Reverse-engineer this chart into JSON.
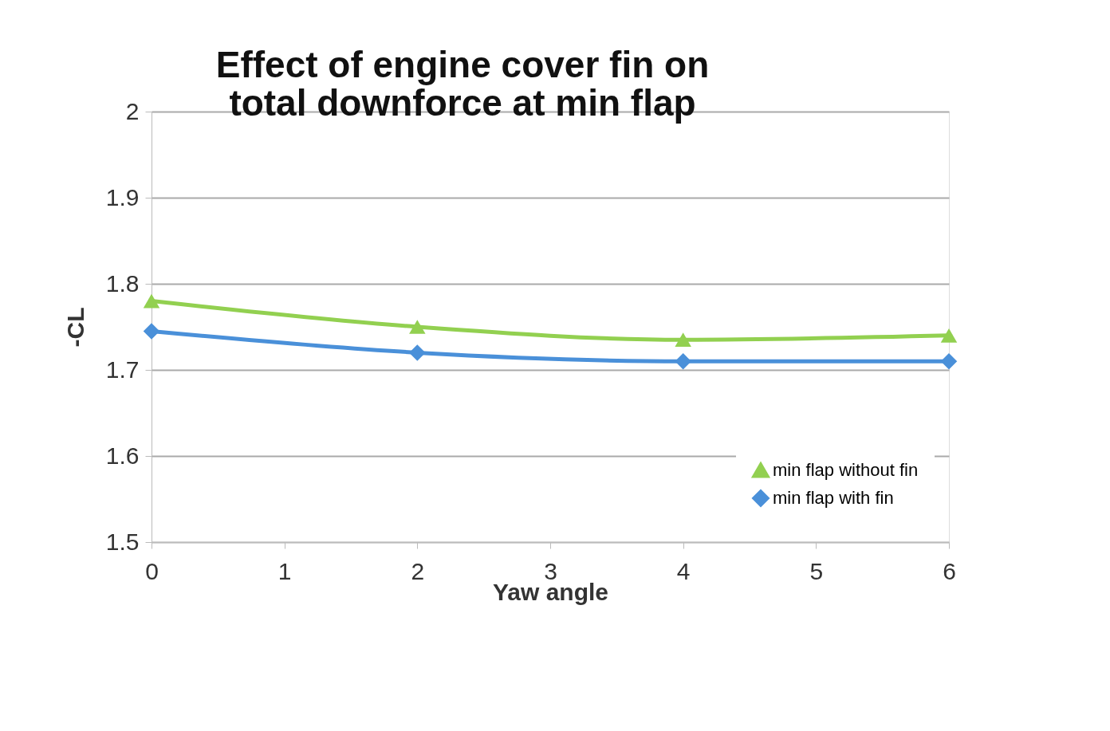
{
  "chart_data": {
    "type": "line",
    "title": [
      "Effect of engine cover fin on",
      "total downforce at min flap"
    ],
    "xlabel": "Yaw angle",
    "ylabel": "-CL",
    "x": [
      0,
      2,
      4,
      6
    ],
    "series": [
      {
        "name": "min flap without fin",
        "color": "#92d050",
        "marker": "triangle",
        "values": [
          1.78,
          1.75,
          1.735,
          1.74
        ]
      },
      {
        "name": "min flap with fin",
        "color": "#4a90d9",
        "marker": "diamond",
        "values": [
          1.745,
          1.72,
          1.71,
          1.71
        ]
      }
    ],
    "xlim": [
      0,
      6
    ],
    "xticks": [
      0,
      1,
      2,
      3,
      4,
      5,
      6
    ],
    "ylim": [
      1.5,
      2
    ],
    "yticks": [
      1.5,
      1.6,
      1.7,
      1.8,
      1.9,
      2
    ],
    "grid": "y",
    "legend": "bottom right",
    "line_style": "solid"
  }
}
